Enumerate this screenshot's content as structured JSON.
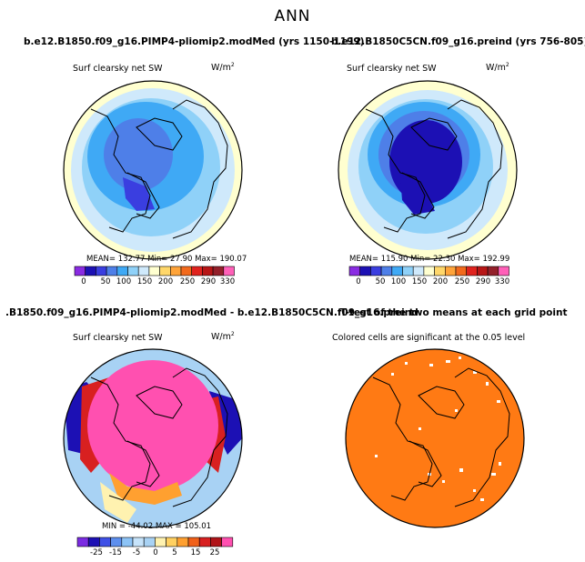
{
  "title": "ANN",
  "panels": {
    "p1": {
      "title": "b.e12.B1850.f09_g16.PIMP4-pliomip2.modMed (yrs 1150-1199)",
      "variable": "Surf clearsky net SW",
      "units": "W/m",
      "units_exp": "2",
      "stats": "MEAN= 132.77   Min=   27.90   Max= 190.07",
      "colorbar_ticks": [
        "0",
        "50",
        "100",
        "150",
        "200",
        "250",
        "290",
        "330"
      ]
    },
    "p2": {
      "title": "b.e12.B1850C5CN.f09_g16.preind (yrs 756-805)",
      "variable": "Surf clearsky net SW",
      "units": "W/m",
      "units_exp": "2",
      "stats": "MEAN= 115.90   Min=   22.30   Max= 192.99",
      "colorbar_ticks": [
        "0",
        "50",
        "100",
        "150",
        "200",
        "250",
        "290",
        "330"
      ]
    },
    "p3": {
      "title": ".B1850.f09_g16.PIMP4-pliomip2.modMed - b.e12.B1850C5CN.f09_g16.preind",
      "variable": "Surf clearsky net SW",
      "units": "W/m",
      "units_exp": "2",
      "stats": "MIN = -44.02  MAX = 105.01",
      "colorbar_ticks": [
        "-25",
        "-15",
        "-5",
        "0",
        "5",
        "15",
        "25"
      ]
    },
    "p4": {
      "title": "T-test of the two means at each grid point",
      "subtitle": "Colored cells are significant at the 0.05 level"
    }
  },
  "colors": {
    "abs_scale": [
      "#8a2be2",
      "#1c10b4",
      "#3a3ee0",
      "#4e7fe8",
      "#3fa9f5",
      "#8fd1f8",
      "#cfe9fb",
      "#ffffd0",
      "#ffd76a",
      "#ffa43a",
      "#f26a1c",
      "#e0231e",
      "#b71616",
      "#93202a",
      "#ff60b8"
    ],
    "diff_scale": [
      "#7b2be2",
      "#1c10b4",
      "#3e50e6",
      "#5d8fee",
      "#8cc3f6",
      "#c6e3fa",
      "#a8d2f4",
      "#fff2b0",
      "#ffd060",
      "#ffa030",
      "#f06018",
      "#d82020",
      "#b01418",
      "#ff50b0"
    ],
    "ttest": "#ff7a14",
    "land_outline": "#000000"
  }
}
